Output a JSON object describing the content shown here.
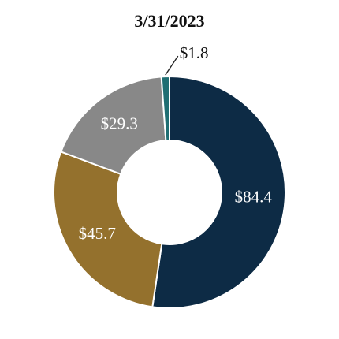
{
  "chart_data": {
    "type": "pie",
    "title": "3/31/2023",
    "values": [
      84.4,
      45.7,
      29.3,
      1.8
    ],
    "labels": [
      "$84.4",
      "$45.7",
      "$29.3",
      "$1.8"
    ],
    "colors": [
      "#0d2b45",
      "#94712d",
      "#888888",
      "#1f6e72"
    ],
    "legend": "none"
  }
}
